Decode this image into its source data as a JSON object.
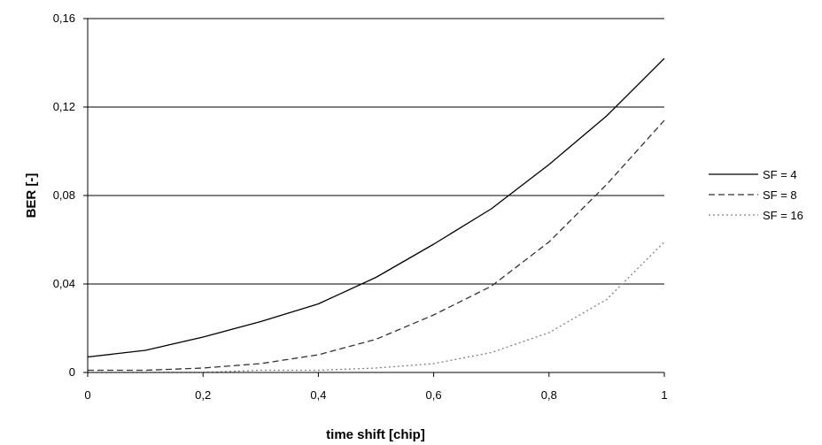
{
  "chart_data": {
    "type": "line",
    "xlabel": "time shift [chip]",
    "ylabel": "BER [-]",
    "xlim": [
      0,
      1
    ],
    "ylim": [
      0,
      0.16
    ],
    "x_ticks": [
      "0",
      "0,2",
      "0,4",
      "0,6",
      "0,8",
      "1"
    ],
    "y_ticks": [
      "0",
      "0,04",
      "0,08",
      "0,12",
      "0,16"
    ],
    "grid": "horizontal",
    "legend_position": "right",
    "x": [
      0,
      0.1,
      0.2,
      0.3,
      0.4,
      0.5,
      0.6,
      0.7,
      0.8,
      0.9,
      1
    ],
    "series": [
      {
        "name": "SF = 4",
        "style": "solid",
        "color": "#000000",
        "values": [
          0.007,
          0.01,
          0.016,
          0.023,
          0.031,
          0.043,
          0.058,
          0.074,
          0.094,
          0.116,
          0.142
        ]
      },
      {
        "name": "SF = 8",
        "style": "dashed",
        "color": "#333333",
        "values": [
          0.001,
          0.001,
          0.002,
          0.004,
          0.008,
          0.015,
          0.026,
          0.039,
          0.059,
          0.085,
          0.114
        ]
      },
      {
        "name": "SF = 16",
        "style": "dotted",
        "color": "#808080",
        "values": [
          0.0,
          0.0,
          0.0,
          0.001,
          0.001,
          0.002,
          0.004,
          0.009,
          0.018,
          0.033,
          0.059
        ]
      }
    ]
  }
}
